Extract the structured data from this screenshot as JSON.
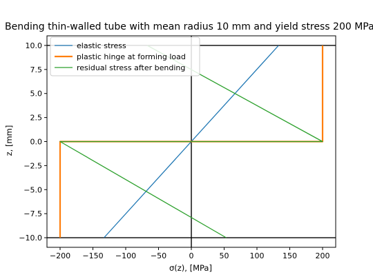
{
  "chart_data": {
    "type": "line",
    "title": "Bending thin-walled tube with mean radius 10 mm and yield stress 200 MPa",
    "xlabel": "σ(z), [MPa]",
    "ylabel": "z, [mm]",
    "xlim": [
      -220,
      220
    ],
    "ylim": [
      -11,
      11
    ],
    "xticks": [
      -200,
      -150,
      -100,
      -50,
      0,
      50,
      100,
      150,
      200
    ],
    "yticks": [
      -10.0,
      -7.5,
      -5.0,
      -2.5,
      0.0,
      2.5,
      5.0,
      7.5,
      10.0
    ],
    "xtick_labels": [
      "−200",
      "−150",
      "−100",
      "−50",
      "0",
      "50",
      "100",
      "150",
      "200"
    ],
    "ytick_labels": [
      "−10.0",
      "−7.5",
      "−5.0",
      "−2.5",
      "0.0",
      "2.5",
      "5.0",
      "7.5",
      "10.0"
    ],
    "grid": false,
    "legend_position": "top-left",
    "reference_lines": {
      "vertical_x": 0,
      "horizontal_y": [
        10,
        -10
      ],
      "color": "#000000"
    },
    "series": [
      {
        "name": "elastic stress",
        "color": "#1f77b4",
        "width": 1.3,
        "x": [
          -133,
          133
        ],
        "y": [
          -10,
          10
        ]
      },
      {
        "name": "plastic hinge at forming load",
        "color": "#ff7f0e",
        "width": 2.2,
        "x": [
          -200,
          -200,
          200,
          200
        ],
        "y": [
          -10,
          0,
          0,
          10
        ]
      },
      {
        "name": "residual stress after bending",
        "color": "#2ca02c",
        "width": 1.3,
        "x": [
          53,
          -200,
          -200,
          200,
          200,
          -67
        ],
        "y": [
          -10,
          0,
          0,
          0,
          0,
          10
        ]
      }
    ]
  }
}
